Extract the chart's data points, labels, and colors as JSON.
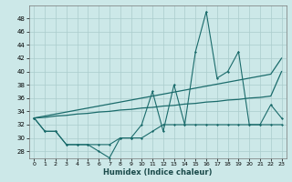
{
  "xlabel": "Humidex (Indice chaleur)",
  "background_color": "#cce8e8",
  "grid_color": "#aacccc",
  "line_color": "#1a6b6b",
  "x_values": [
    0,
    1,
    2,
    3,
    4,
    5,
    6,
    7,
    8,
    9,
    10,
    11,
    12,
    13,
    14,
    15,
    16,
    17,
    18,
    19,
    20,
    21,
    22,
    23
  ],
  "series1": [
    33,
    31,
    31,
    29,
    29,
    29,
    28,
    27,
    30,
    30,
    30,
    31,
    32,
    32,
    32,
    32,
    32,
    32,
    32,
    32,
    32,
    32,
    32,
    32
  ],
  "series2": [
    33,
    31,
    31,
    29,
    29,
    29,
    29,
    29,
    30,
    30,
    32,
    37,
    31,
    38,
    32,
    43,
    49,
    39,
    40,
    43,
    32,
    32,
    35,
    33
  ],
  "trend1": [
    33,
    33.3,
    33.6,
    33.9,
    34.2,
    34.5,
    34.8,
    35.1,
    35.4,
    35.7,
    36.0,
    36.3,
    36.6,
    36.9,
    37.2,
    37.5,
    37.8,
    38.1,
    38.4,
    38.7,
    39.0,
    39.3,
    39.6,
    42
  ],
  "trend2": [
    33,
    33.1,
    33.3,
    33.4,
    33.6,
    33.7,
    33.9,
    34.0,
    34.2,
    34.3,
    34.5,
    34.6,
    34.8,
    34.9,
    35.1,
    35.2,
    35.4,
    35.5,
    35.7,
    35.8,
    36.0,
    36.1,
    36.3,
    40
  ],
  "ylim": [
    27,
    50
  ],
  "yticks": [
    28,
    30,
    32,
    34,
    36,
    38,
    40,
    42,
    44,
    46,
    48
  ],
  "xticks": [
    0,
    1,
    2,
    3,
    4,
    5,
    6,
    7,
    8,
    9,
    10,
    11,
    12,
    13,
    14,
    15,
    16,
    17,
    18,
    19,
    20,
    21,
    22,
    23
  ],
  "xtick_labels": [
    "0",
    "1",
    "2",
    "3",
    "4",
    "5",
    "6",
    "7",
    "8",
    "9",
    "10",
    "11",
    "12",
    "13",
    "14",
    "15",
    "16",
    "17",
    "18",
    "19",
    "20",
    "21",
    "22",
    "23"
  ]
}
